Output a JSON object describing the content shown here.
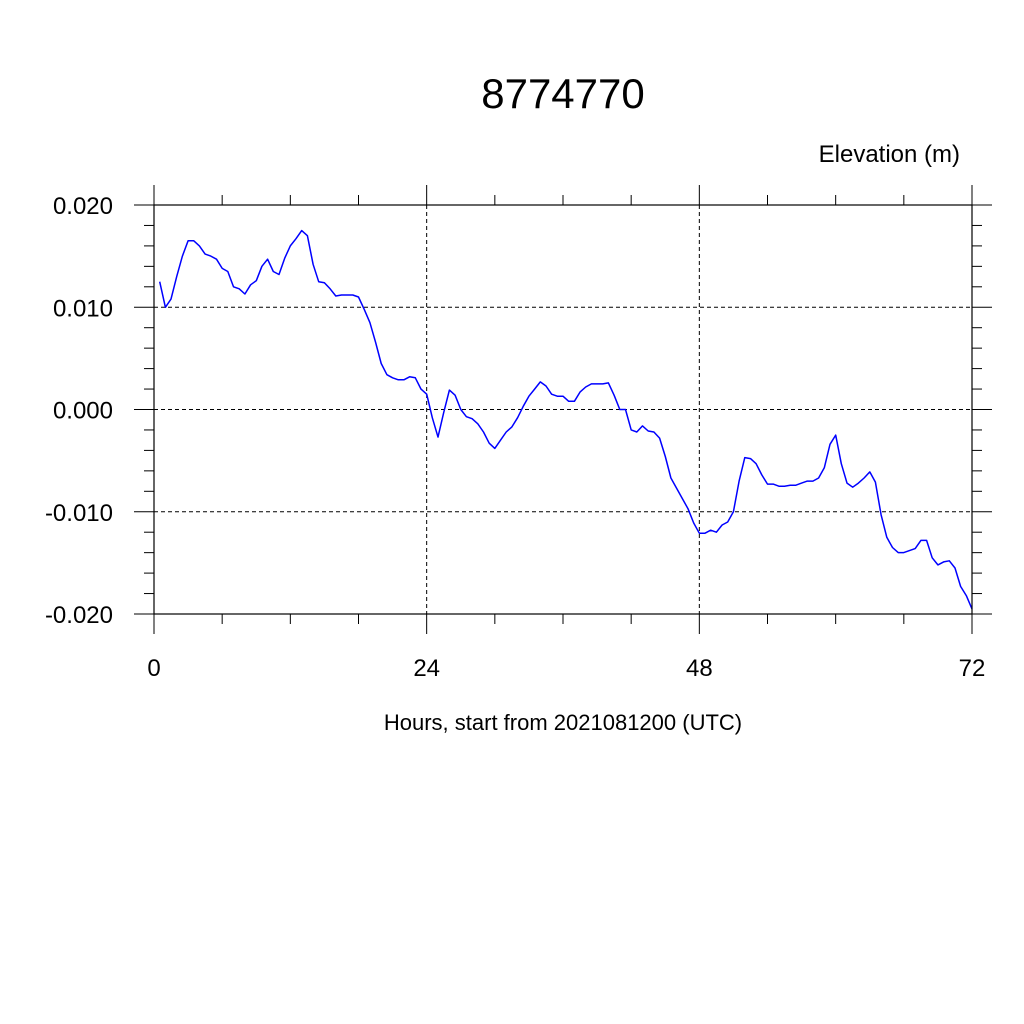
{
  "chart_data": {
    "type": "line",
    "title": "8774770",
    "units_label": "Elevation (m)",
    "xlabel": "Hours, start from 2021081200 (UTC)",
    "ylabel": "",
    "xlim": [
      0,
      72
    ],
    "ylim": [
      -0.02,
      0.02
    ],
    "x_ticks": [
      0,
      24,
      48,
      72
    ],
    "x_tick_labels": [
      "0",
      "24",
      "48",
      "72"
    ],
    "y_ticks": [
      -0.02,
      -0.01,
      0.0,
      0.01,
      0.02
    ],
    "y_tick_labels": [
      "-0.020",
      "-0.010",
      "0.000",
      "0.010",
      "0.020"
    ],
    "grid": "dashed at major ticks",
    "line_color": "#0000ff",
    "series": [
      {
        "x": [
          0.5,
          1.0,
          1.5,
          2.0,
          2.5,
          3.0,
          3.5,
          4.0,
          4.5,
          5.0,
          5.5,
          6.0,
          6.5,
          7.0,
          7.5,
          8.0,
          8.5,
          9.0,
          9.5,
          10.0,
          10.5,
          11.0,
          11.5,
          12.0,
          12.5,
          13.0,
          13.5,
          14.0,
          14.5,
          15.0,
          15.5,
          16.0,
          16.5,
          17.0,
          17.5,
          18.0,
          18.5,
          19.0,
          19.5,
          20.0,
          20.5,
          21.0,
          21.5,
          22.0,
          22.5,
          23.0,
          23.5,
          24.0,
          24.5,
          25.0,
          25.5,
          26.0,
          26.5,
          27.0,
          27.5,
          28.0,
          28.5,
          29.0,
          29.5,
          30.0,
          30.5,
          31.0,
          31.5,
          32.0,
          32.5,
          33.0,
          33.5,
          34.0,
          34.5,
          35.0,
          35.5,
          36.0,
          36.5,
          37.0,
          37.5,
          38.0,
          38.5,
          39.0,
          39.5,
          40.0,
          40.5,
          41.0,
          41.5,
          42.0,
          42.5,
          43.0,
          43.5,
          44.0,
          44.5,
          45.0,
          45.5,
          46.0,
          46.5,
          47.0,
          47.5,
          48.0,
          48.5,
          49.0,
          49.5,
          50.0,
          50.5,
          51.0,
          51.5,
          52.0,
          52.5,
          53.0,
          53.5,
          54.0,
          54.5,
          55.0,
          55.5,
          56.0,
          56.5,
          57.0,
          57.5,
          58.0,
          58.5,
          59.0,
          59.5,
          60.0,
          60.5,
          61.0,
          61.5,
          62.0,
          62.5,
          63.0,
          63.5,
          64.0,
          64.5,
          65.0,
          65.5,
          66.0,
          66.5,
          67.0,
          67.5,
          68.0,
          68.5,
          69.0,
          69.5,
          70.0,
          70.5,
          71.0,
          71.5,
          72.0
        ],
        "y": [
          0.0125,
          0.01,
          0.0108,
          0.013,
          0.015,
          0.0165,
          0.0165,
          0.016,
          0.0152,
          0.015,
          0.0147,
          0.0138,
          0.0135,
          0.012,
          0.0118,
          0.0113,
          0.0122,
          0.0126,
          0.014,
          0.0147,
          0.0135,
          0.0132,
          0.0148,
          0.016,
          0.0167,
          0.0175,
          0.017,
          0.0142,
          0.0125,
          0.0124,
          0.0118,
          0.0111,
          0.0112,
          0.0112,
          0.0112,
          0.011,
          0.0098,
          0.0085,
          0.0066,
          0.0045,
          0.0034,
          0.0031,
          0.0029,
          0.0029,
          0.0032,
          0.0031,
          0.002,
          0.0015,
          -0.0008,
          -0.0027,
          -0.0003,
          0.0019,
          0.0014,
          0.0,
          -0.0007,
          -0.0009,
          -0.0014,
          -0.0022,
          -0.0033,
          -0.0038,
          -0.003,
          -0.0022,
          -0.0017,
          -0.0008,
          0.0003,
          0.0013,
          0.002,
          0.0027,
          0.0023,
          0.0015,
          0.0013,
          0.0013,
          0.0008,
          0.0008,
          0.0017,
          0.0022,
          0.0025,
          0.0025,
          0.0025,
          0.0026,
          0.0014,
          0.0,
          0.0,
          -0.002,
          -0.0022,
          -0.0016,
          -0.0021,
          -0.0022,
          -0.0028,
          -0.0046,
          -0.0067,
          -0.0077,
          -0.0087,
          -0.0097,
          -0.0111,
          -0.0121,
          -0.0121,
          -0.0118,
          -0.012,
          -0.0113,
          -0.011,
          -0.01,
          -0.007,
          -0.0047,
          -0.0048,
          -0.0053,
          -0.0064,
          -0.0073,
          -0.0073,
          -0.0075,
          -0.0075,
          -0.0074,
          -0.0074,
          -0.0072,
          -0.007,
          -0.007,
          -0.0067,
          -0.0057,
          -0.0034,
          -0.0025,
          -0.0053,
          -0.0072,
          -0.0076,
          -0.0072,
          -0.0067,
          -0.0061,
          -0.0071,
          -0.0103,
          -0.0125,
          -0.0135,
          -0.014,
          -0.014,
          -0.0138,
          -0.0136,
          -0.0128,
          -0.0128,
          -0.0145,
          -0.0152,
          -0.0149,
          -0.0148,
          -0.0155,
          -0.0173,
          -0.0182,
          -0.0195
        ]
      }
    ]
  }
}
